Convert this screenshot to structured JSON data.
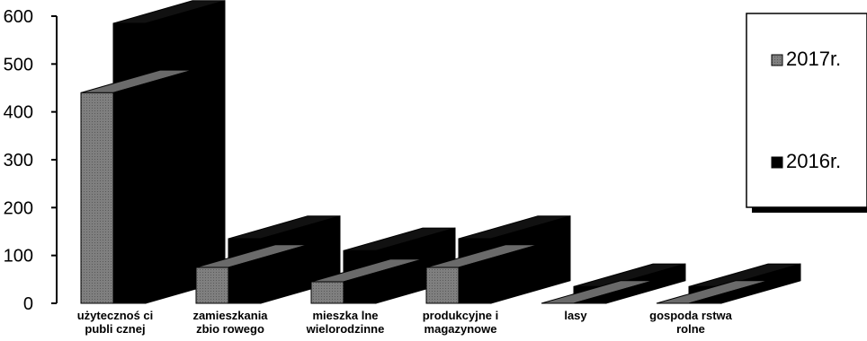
{
  "chart_data": {
    "type": "bar",
    "three_d": true,
    "title": "",
    "xlabel": "",
    "ylabel": "",
    "ylim": [
      0,
      600
    ],
    "yticks": [
      0,
      100,
      200,
      300,
      400,
      500,
      600
    ],
    "categories": [
      [
        "użytecznoś ci",
        "publi cznej"
      ],
      [
        "zamieszkania",
        "zbio rowego"
      ],
      [
        "mieszka lne",
        "wielorodzinne"
      ],
      [
        "produkcyjne i",
        "magazynowe"
      ],
      [
        "lasy"
      ],
      [
        "gospoda rstwa",
        "rolne"
      ]
    ],
    "series": [
      {
        "name": "2017r.",
        "color": "#808080",
        "values": [
          440,
          75,
          45,
          75,
          0,
          0
        ]
      },
      {
        "name": "2016r.",
        "color": "#000000",
        "values": [
          585,
          135,
          110,
          135,
          35,
          35
        ]
      }
    ],
    "legend": {
      "position": "right",
      "visible": true
    },
    "grid": false
  }
}
